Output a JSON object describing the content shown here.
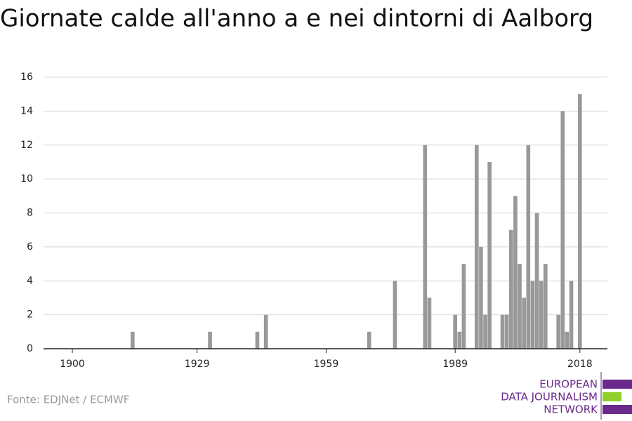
{
  "chart_data": {
    "type": "bar",
    "title": "Giornate calde all'anno a e nei dintorni di Aalborg",
    "source": "Fonte: EDJNet / ECMWF",
    "x": [
      1914,
      1932,
      1943,
      1945,
      1969,
      1975,
      1982,
      1983,
      1989,
      1990,
      1991,
      1994,
      1995,
      1996,
      1997,
      2000,
      2001,
      2002,
      2003,
      2004,
      2005,
      2006,
      2007,
      2008,
      2009,
      2010,
      2013,
      2014,
      2015,
      2016,
      2018
    ],
    "values": [
      1,
      1,
      1,
      2,
      1,
      4,
      12,
      3,
      2,
      1,
      5,
      12,
      6,
      2,
      11,
      2,
      2,
      7,
      9,
      5,
      3,
      12,
      4,
      8,
      4,
      5,
      2,
      14,
      1,
      4,
      15
    ],
    "color": "#999999",
    "xlim": [
      1893.3,
      2024.4
    ],
    "xticks": [
      1900,
      1929,
      1959,
      1989,
      2018
    ],
    "ylim": [
      0,
      16
    ],
    "yticks": [
      0,
      2,
      4,
      6,
      8,
      10,
      12,
      14,
      16
    ],
    "grid": true
  },
  "logo": [
    "EUROPEAN",
    "DATA JOURNALISM",
    "NETWORK"
  ]
}
